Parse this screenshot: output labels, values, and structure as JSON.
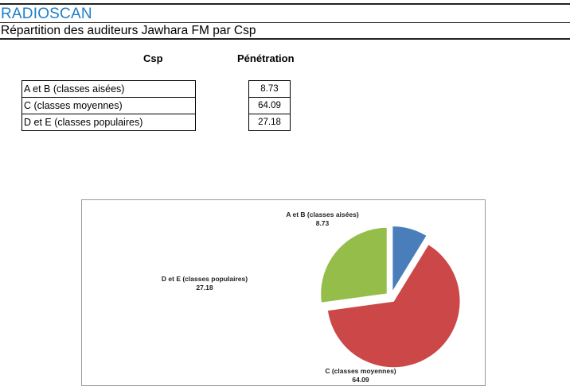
{
  "header": {
    "brand": "RADIOSCAN",
    "subtitle": "Répartition des auditeurs Jawhara FM par Csp"
  },
  "table": {
    "col_category": "Csp",
    "col_value": "Pénétration",
    "rows": [
      {
        "label": "A et B (classes aisées)",
        "value": "8.73"
      },
      {
        "label": "C (classes moyennes)",
        "value": "64.09"
      },
      {
        "label": "D et E (classes populaires)",
        "value": "27.18"
      }
    ]
  },
  "chart_data": {
    "type": "pie",
    "categories": [
      "A et B (classes aisées)",
      "C (classes moyennes)",
      "D et E (classes populaires)"
    ],
    "values": [
      8.73,
      64.09,
      27.18
    ],
    "colors": [
      "#4a7ebb",
      "#cc4748",
      "#94bd4a"
    ],
    "data_labels": [
      {
        "name": "A et B (classes aisées)",
        "value": "8.73"
      },
      {
        "name": "C (classes moyennes)",
        "value": "64.09"
      },
      {
        "name": "D et E (classes populaires)",
        "value": "27.18"
      }
    ],
    "legend": "none",
    "exploded": true,
    "start_angle": "12 o'clock, clockwise"
  }
}
